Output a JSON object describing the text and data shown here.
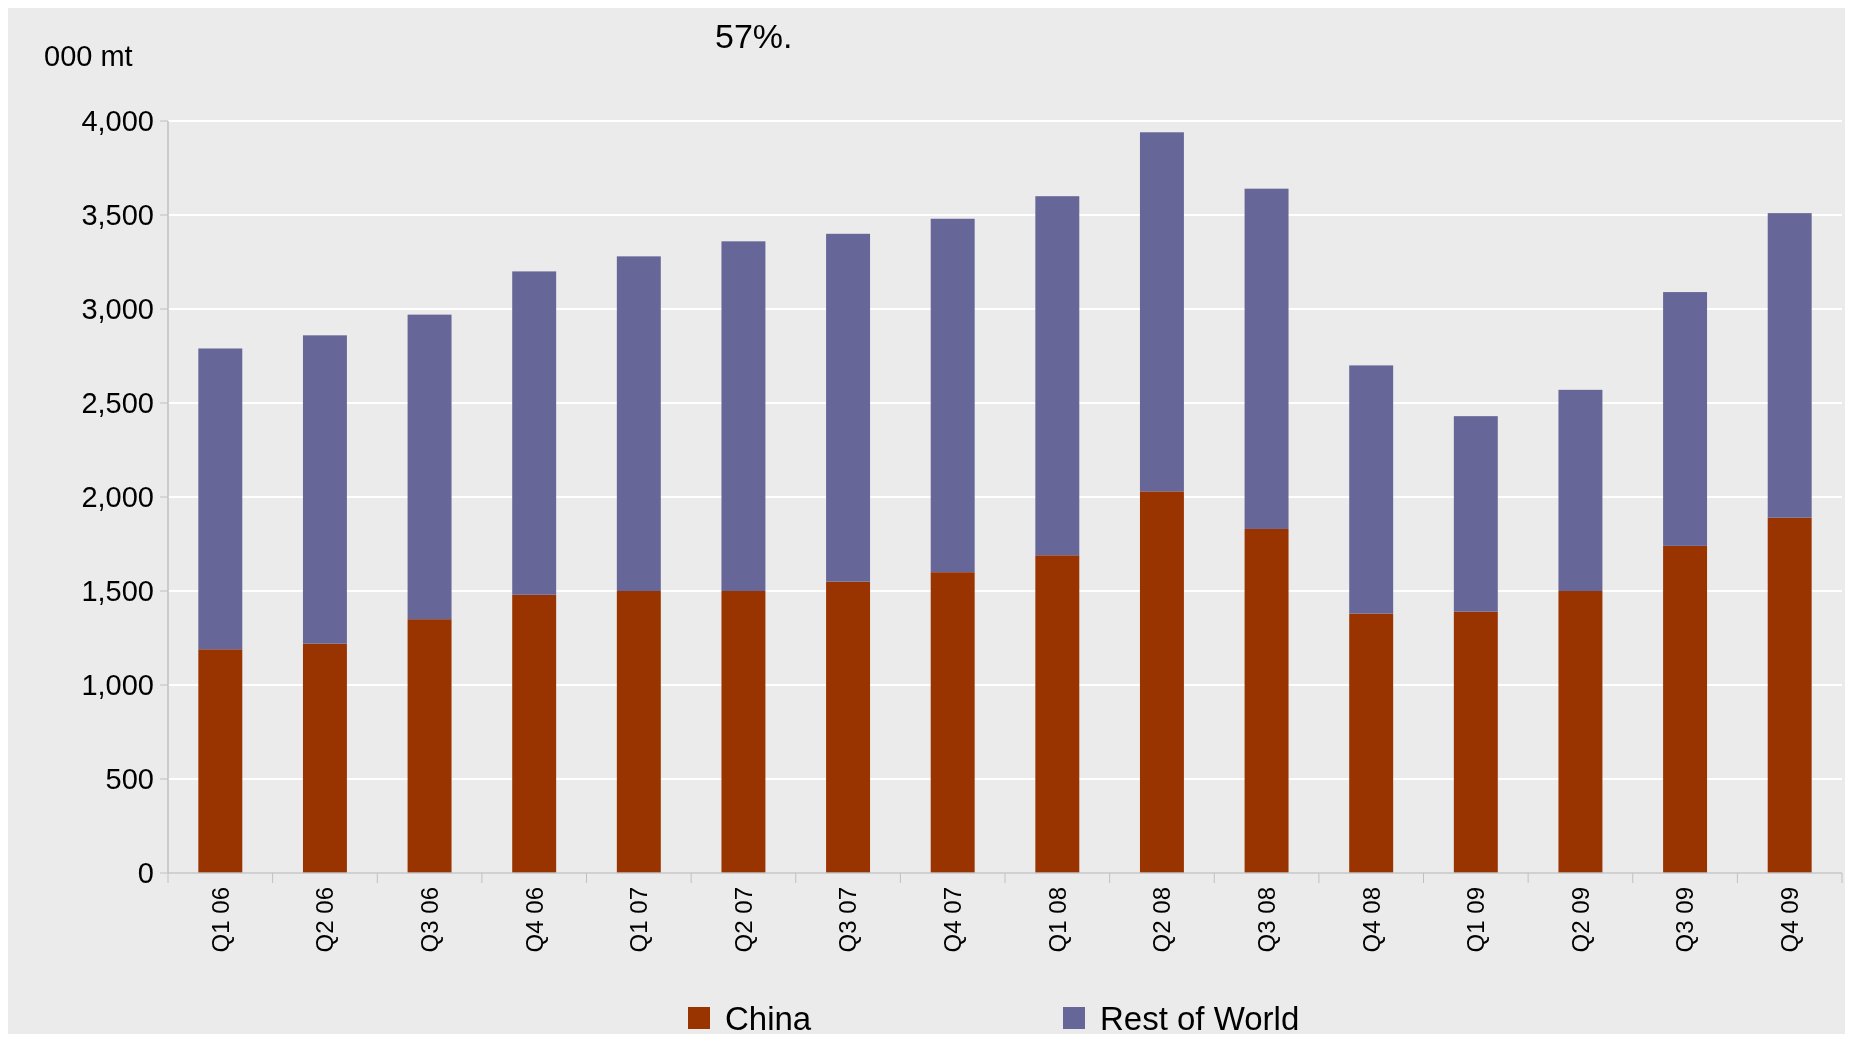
{
  "chart_data": {
    "type": "bar",
    "stacked": true,
    "ylabel": "000 mt",
    "annotations": [
      "57%."
    ],
    "categories": [
      "Q1 06",
      "Q2 06",
      "Q3 06",
      "Q4 06",
      "Q1 07",
      "Q2 07",
      "Q3 07",
      "Q4 07",
      "Q1 08",
      "Q2 08",
      "Q3 08",
      "Q4 08",
      "Q1 09",
      "Q2 09",
      "Q3 09",
      "Q4 09"
    ],
    "series": [
      {
        "name": "China",
        "color": "#993300",
        "values": [
          1190,
          1220,
          1350,
          1480,
          1500,
          1500,
          1550,
          1600,
          1690,
          2030,
          1830,
          1380,
          1390,
          1500,
          1740,
          1890
        ]
      },
      {
        "name": "Rest of World",
        "color": "#666699",
        "values": [
          1600,
          1640,
          1620,
          1720,
          1780,
          1860,
          1850,
          1880,
          1910,
          1910,
          1810,
          1320,
          1040,
          1070,
          1350,
          1620
        ]
      }
    ],
    "ylim": [
      0,
      4000
    ],
    "yticks": [
      0,
      500,
      {
        "value": 1000,
        "label": "1,000"
      },
      {
        "value": 1500,
        "label": "1,500"
      },
      {
        "value": 2000,
        "label": "2,000"
      },
      {
        "value": 2500,
        "label": "2,500"
      },
      {
        "value": 3000,
        "label": "3,000"
      },
      {
        "value": 3500,
        "label": "3,500"
      },
      {
        "value": 4000,
        "label": "4,000"
      }
    ],
    "grid": "y",
    "legend": "bottom"
  }
}
